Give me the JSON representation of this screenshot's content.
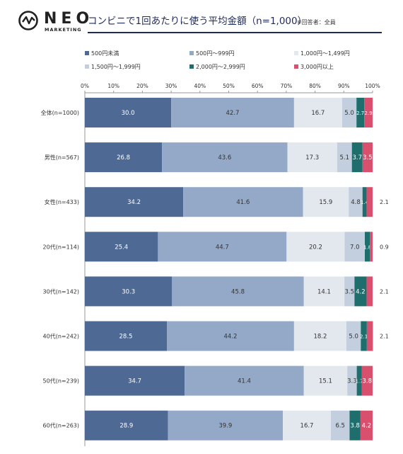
{
  "brand": {
    "name": "NEO",
    "sub": "MARKETING"
  },
  "header": {
    "title": "コンビニで1回あたりに使う平均金額（n=1,000）",
    "note": "※回答者：全員",
    "accent_color": "#1f2a5a"
  },
  "chart_data": {
    "type": "bar",
    "orientation": "horizontal",
    "stacked": true,
    "percent": true,
    "xlim": [
      0,
      100
    ],
    "x_ticks": [
      "0%",
      "10%",
      "20%",
      "30%",
      "40%",
      "50%",
      "60%",
      "70%",
      "80%",
      "90%",
      "100%"
    ],
    "grid": false,
    "legend_position": "top",
    "categories": [
      "全体(n=1000)",
      "男性(n=567)",
      "女性(n=433)",
      "20代(n=114)",
      "30代(n=142)",
      "40代(n=242)",
      "50代(n=239)",
      "60代(n=263)"
    ],
    "series": [
      {
        "name": "500円未満",
        "color": "#4e6a94",
        "label_color": "#ffffff",
        "values": [
          30.0,
          26.8,
          34.2,
          25.4,
          30.3,
          28.5,
          34.7,
          28.9
        ]
      },
      {
        "name": "500円〜999円",
        "color": "#94a9c8",
        "label_color": "#333333",
        "values": [
          42.7,
          43.6,
          41.6,
          44.7,
          45.8,
          44.2,
          41.4,
          39.9
        ]
      },
      {
        "name": "1,000円〜1,499円",
        "color": "#e3e8ee",
        "label_color": "#333333",
        "values": [
          16.7,
          17.3,
          15.9,
          20.2,
          14.1,
          18.2,
          15.1,
          16.7
        ]
      },
      {
        "name": "1,500円〜1,999円",
        "color": "#c3cfde",
        "label_color": "#333333",
        "values": [
          5.0,
          5.1,
          4.8,
          7.0,
          3.5,
          5.0,
          3.3,
          6.5
        ]
      },
      {
        "name": "2,000円〜2,999円",
        "color": "#1e6e6e",
        "label_color": "#ffffff",
        "values": [
          2.7,
          3.7,
          1.4,
          1.8,
          4.2,
          2.1,
          1.7,
          3.8
        ]
      },
      {
        "name": "3,000円以上",
        "color": "#d9506e",
        "label_color": "#ffffff",
        "values": [
          2.9,
          3.5,
          2.1,
          0.9,
          2.1,
          2.1,
          3.8,
          4.2
        ]
      }
    ],
    "value_labels": [
      [
        "30.0",
        "42.7",
        "16.7",
        "5.0",
        "2.7",
        "2.9"
      ],
      [
        "26.8",
        "43.6",
        "17.3",
        "5.1",
        "3.7",
        "3.5"
      ],
      [
        "34.2",
        "41.6",
        "15.9",
        "4.8",
        "1.4",
        "2.1"
      ],
      [
        "25.4",
        "44.7",
        "20.2",
        "7.0",
        "1.8",
        "0.9"
      ],
      [
        "30.3",
        "45.8",
        "14.1",
        "3.5",
        "4.2",
        "2.1"
      ],
      [
        "28.5",
        "44.2",
        "18.2",
        "5.0",
        "2.1",
        "2.1"
      ],
      [
        "34.7",
        "41.4",
        "15.1",
        "3.3",
        "1.7",
        "3.8"
      ],
      [
        "28.9",
        "39.9",
        "16.7",
        "6.5",
        "3.8",
        "4.2"
      ]
    ],
    "outside_labels": [
      {
        "row": 2,
        "series": 5
      },
      {
        "row": 3,
        "series": 5
      },
      {
        "row": 4,
        "series": 5
      },
      {
        "row": 5,
        "series": 5
      }
    ]
  }
}
